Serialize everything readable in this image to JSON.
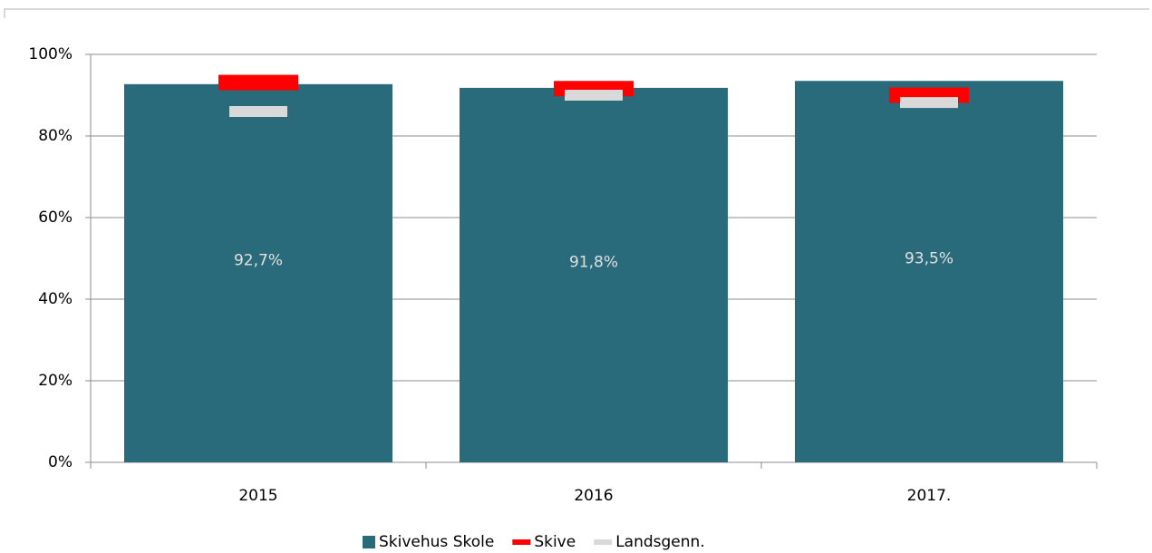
{
  "chart_data": {
    "type": "bar",
    "categories": [
      "2015",
      "2016",
      "2017."
    ],
    "series": [
      {
        "name": "Skivehus Skole",
        "color": "#2a6b7b",
        "marker": "bar",
        "values": [
          92.7,
          91.8,
          93.5
        ],
        "value_labels": [
          "92,7%",
          "91,8%",
          "93,5%"
        ]
      },
      {
        "name": "Skive",
        "color": "#ff0000",
        "marker": "dash",
        "values": [
          93.1,
          91.6,
          90.0
        ]
      },
      {
        "name": "Landsgenn.",
        "color": "#d9d9d9",
        "marker": "dash",
        "values": [
          86.0,
          90.0,
          88.2
        ]
      }
    ],
    "ylim": [
      0,
      100
    ],
    "yticks": [
      {
        "value": 0,
        "label": "0%"
      },
      {
        "value": 20,
        "label": "20%"
      },
      {
        "value": 40,
        "label": "40%"
      },
      {
        "value": 60,
        "label": "60%"
      },
      {
        "value": 80,
        "label": "80%"
      },
      {
        "value": 100,
        "label": "100%"
      }
    ],
    "grid": true,
    "legend": "bottom"
  }
}
